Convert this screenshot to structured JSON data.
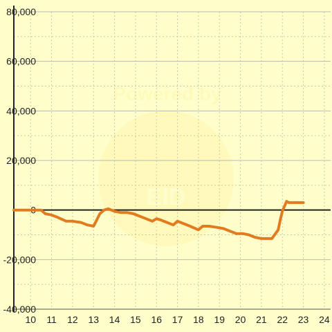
{
  "chart_data": {
    "type": "line",
    "title": "",
    "xlabel": "",
    "ylabel": "",
    "x_ticks": [
      10,
      11,
      12,
      13,
      14,
      15,
      16,
      17,
      18,
      19,
      20,
      21,
      22,
      23,
      24
    ],
    "y_ticks": [
      -40000,
      -20000,
      0,
      20000,
      40000,
      60000,
      80000
    ],
    "y_tick_labels": [
      "-40,000",
      "-20,000",
      "0",
      "20,000",
      "40,000",
      "60,000",
      "80,000"
    ],
    "xlim": [
      9.2,
      24.3
    ],
    "ylim": [
      -40000,
      80000
    ],
    "grid": true,
    "series": [
      {
        "x": [
          9.2,
          10.5,
          10.7,
          11.0,
          11.3,
          11.7,
          12.0,
          12.4,
          12.7,
          13.0,
          13.3,
          13.5,
          13.7,
          14.0,
          14.3,
          14.6,
          14.9,
          15.2,
          15.5,
          15.8,
          16.0,
          16.2,
          16.5,
          16.8,
          17.0,
          17.3,
          17.6,
          18.0,
          18.2,
          18.5,
          18.9,
          19.2,
          19.5,
          19.8,
          20.1,
          20.4,
          20.7,
          21.0,
          21.5,
          21.8,
          21.9,
          22.0,
          22.2,
          22.3,
          22.5,
          22.8,
          23.0
        ],
        "y": [
          0,
          0,
          -1500,
          -2000,
          -3000,
          -4500,
          -4500,
          -5000,
          -6000,
          -6500,
          -1500,
          0,
          500,
          -500,
          -1000,
          -1000,
          -1500,
          -2500,
          -3500,
          -4500,
          -3500,
          -4000,
          -5000,
          -6000,
          -4500,
          -5500,
          -6500,
          -8000,
          -6500,
          -6500,
          -7000,
          -7500,
          -8500,
          -9500,
          -9500,
          -10000,
          -11000,
          -11500,
          -11500,
          -8000,
          -4000,
          -500,
          3500,
          3000,
          3000,
          3000,
          3000
        ],
        "color": "#e07b20"
      }
    ],
    "watermark": {
      "line1": "Powered by",
      "line2": "ElD"
    }
  }
}
